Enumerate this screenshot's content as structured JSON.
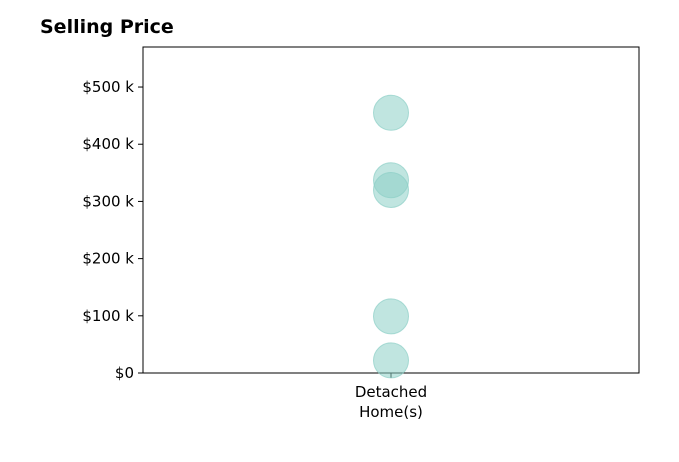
{
  "chart_data": {
    "type": "scatter",
    "title": "Selling Price",
    "xlabel": "",
    "ylabel": "",
    "categories": [
      "Detached\nHome(s)"
    ],
    "points": [
      {
        "category": "Detached\nHome(s)",
        "value": 455000
      },
      {
        "category": "Detached\nHome(s)",
        "value": 337000
      },
      {
        "category": "Detached\nHome(s)",
        "value": 320000
      },
      {
        "category": "Detached\nHome(s)",
        "value": 99000
      },
      {
        "category": "Detached\nHome(s)",
        "value": 22000
      }
    ],
    "ylim": [
      0,
      570000
    ],
    "y_ticks": [
      {
        "value": 0,
        "label": "$0"
      },
      {
        "value": 100000,
        "label": "$100 k"
      },
      {
        "value": 200000,
        "label": "$200 k"
      },
      {
        "value": 300000,
        "label": "$300 k"
      },
      {
        "value": 400000,
        "label": "$400 k"
      },
      {
        "value": 500000,
        "label": "$500 k"
      }
    ],
    "grid": false,
    "legend": "none",
    "marker_color": "#8ccfc6"
  }
}
